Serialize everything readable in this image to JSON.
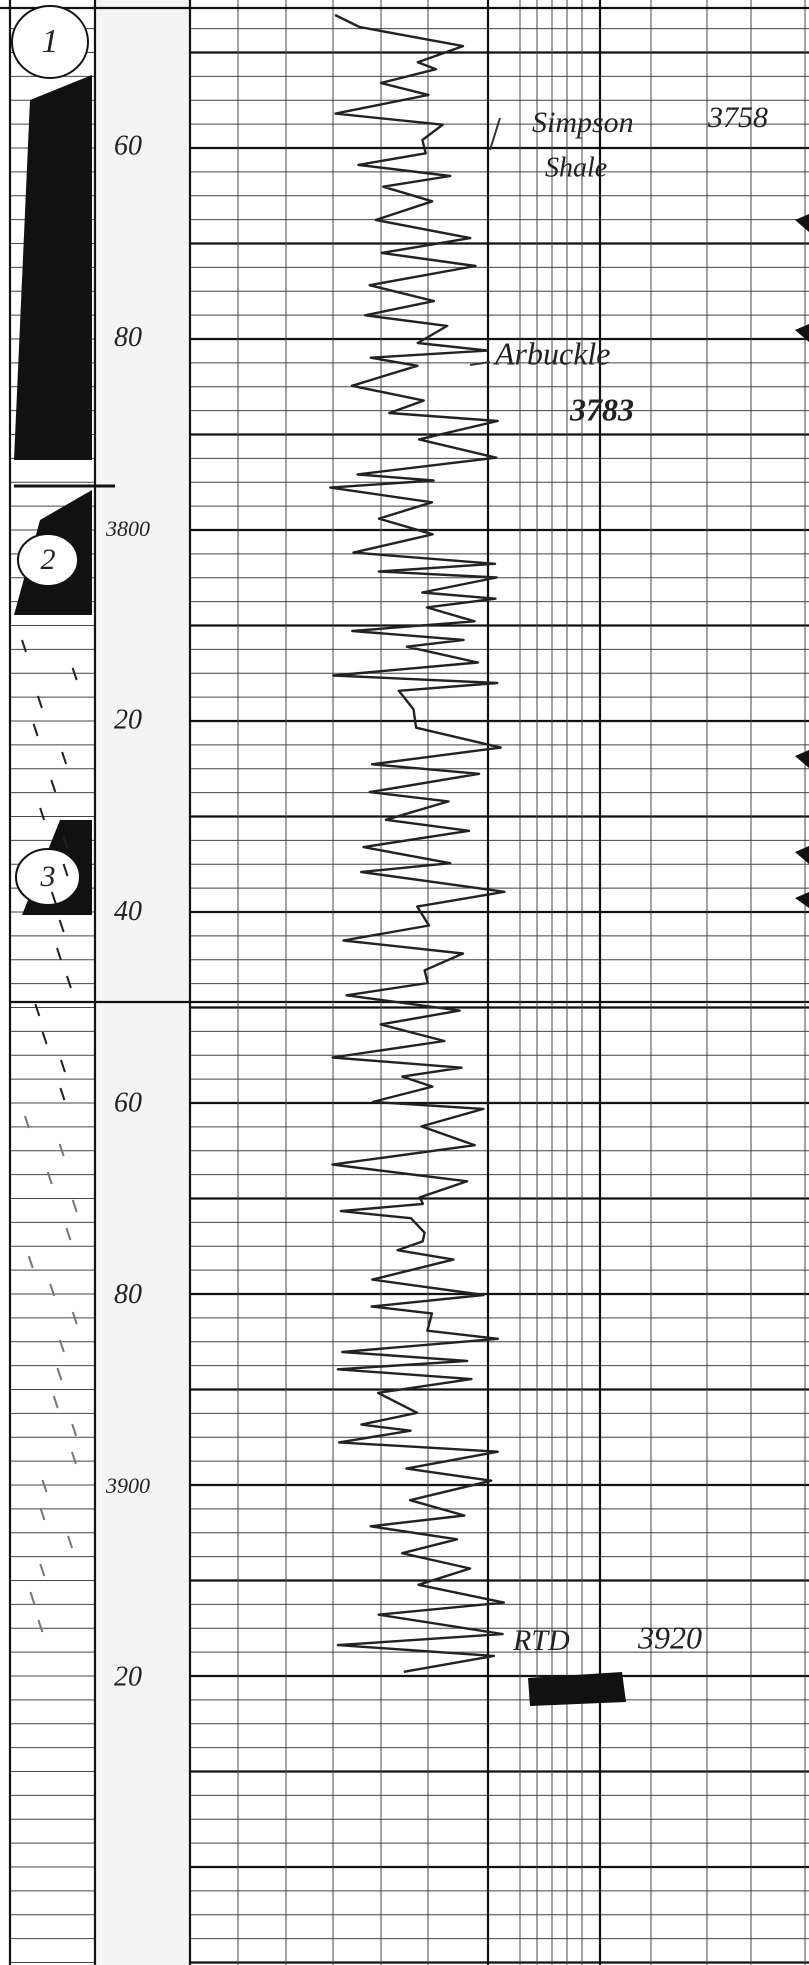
{
  "core_numbers": [
    "1",
    "2",
    "3"
  ],
  "depth_labels": [
    "60",
    "80",
    "3800",
    "20",
    "40",
    "60",
    "80",
    "3900",
    "20"
  ],
  "tops": [
    {
      "name": "Simpson",
      "sub": "Shale",
      "depth": "3758"
    },
    {
      "name": "Arbuckle",
      "depth": "3783"
    }
  ],
  "total_depth": {
    "label": "RTD",
    "depth": "3920"
  }
}
